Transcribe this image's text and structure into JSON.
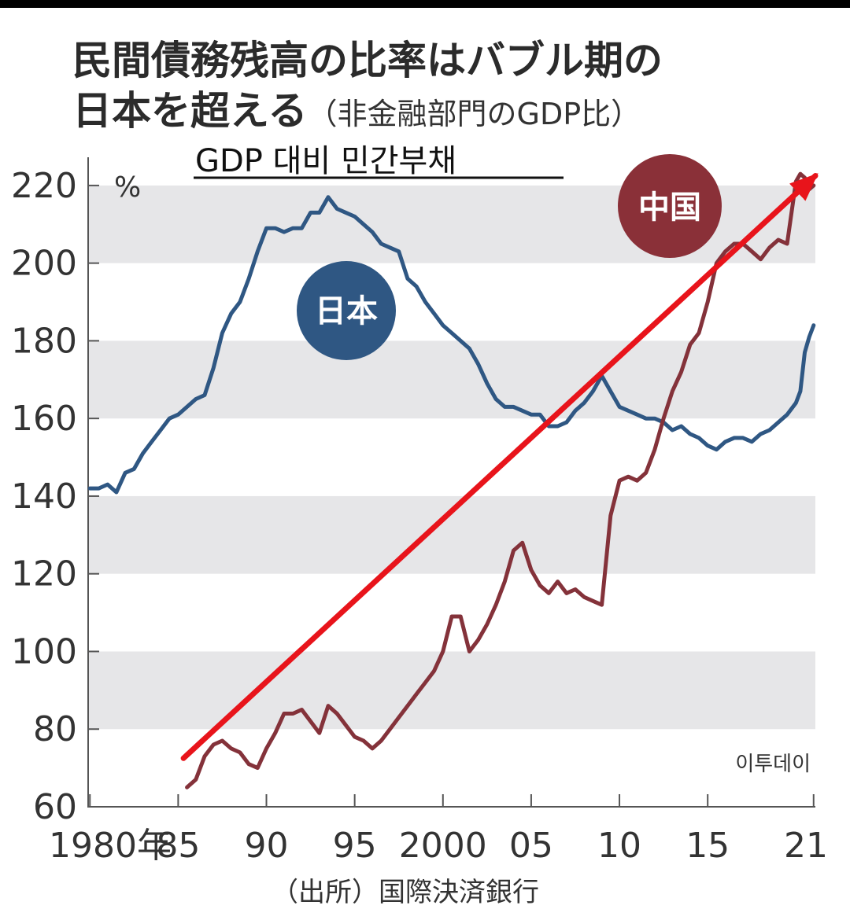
{
  "header": {
    "title_line1": "民間債務残高の比率はバブル期の",
    "title_line2": "日本を超える",
    "title_note": "（非金融部門のGDP比）",
    "korean_title": "GDP 대비 민간부채"
  },
  "source": "（出所）国際決済銀行",
  "watermark": "이투데이",
  "colors": {
    "japan": "#2f5783",
    "china": "#84323a",
    "arrow": "#e8141b",
    "band": "#e6e6e8",
    "japan_badge": "#2f5783",
    "china_badge": "#8a3038"
  },
  "chart_data": {
    "type": "line",
    "title": "GDP 대비 민간부채",
    "ylabel": "%",
    "xlabel": "",
    "ylim": [
      60,
      222
    ],
    "xlim": [
      1979.9,
      2021.1
    ],
    "y_ticks": [
      220,
      200,
      180,
      160,
      140,
      120,
      100,
      80,
      60
    ],
    "x_ticks": [
      {
        "value": 1980,
        "label": "1980年"
      },
      {
        "value": 1985,
        "label": "85"
      },
      {
        "value": 1990,
        "label": "90"
      },
      {
        "value": 1995,
        "label": "95"
      },
      {
        "value": 2000,
        "label": "2000"
      },
      {
        "value": 2005,
        "label": "05"
      },
      {
        "value": 2010,
        "label": "10"
      },
      {
        "value": 2015,
        "label": "15"
      },
      {
        "value": 2021,
        "label": "21"
      }
    ],
    "series": [
      {
        "name": "日本",
        "x": [
          1980.0,
          1980.5,
          1981.0,
          1981.5,
          1982.0,
          1982.5,
          1983.0,
          1983.5,
          1984.0,
          1984.5,
          1985.0,
          1985.5,
          1986.0,
          1986.5,
          1987.0,
          1987.5,
          1988.0,
          1988.5,
          1989.0,
          1989.5,
          1990.0,
          1990.5,
          1991.0,
          1991.5,
          1992.0,
          1992.5,
          1993.0,
          1993.5,
          1994.0,
          1994.5,
          1995.0,
          1995.5,
          1996.0,
          1996.5,
          1997.0,
          1997.5,
          1998.0,
          1998.5,
          1999.0,
          1999.5,
          2000.0,
          2000.5,
          2001.0,
          2001.5,
          2002.0,
          2002.5,
          2003.0,
          2003.5,
          2004.0,
          2004.5,
          2005.0,
          2005.5,
          2006.0,
          2006.5,
          2007.0,
          2007.5,
          2008.0,
          2008.5,
          2009.0,
          2009.5,
          2010.0,
          2010.5,
          2011.0,
          2011.5,
          2012.0,
          2012.5,
          2013.0,
          2013.5,
          2014.0,
          2014.5,
          2015.0,
          2015.5,
          2016.0,
          2016.5,
          2017.0,
          2017.5,
          2018.0,
          2018.5,
          2019.0,
          2019.5,
          2020.0,
          2020.25,
          2020.5,
          2020.75,
          2021.0
        ],
        "values": [
          142,
          142,
          143,
          141,
          146,
          147,
          151,
          154,
          157,
          160,
          161,
          163,
          165,
          166,
          173,
          182,
          187,
          190,
          196,
          203,
          209,
          209,
          208,
          209,
          209,
          213,
          213,
          217,
          214,
          213,
          212,
          210,
          208,
          205,
          204,
          203,
          196,
          194,
          190,
          187,
          184,
          182,
          180,
          178,
          174,
          169,
          165,
          163,
          163,
          162,
          161,
          161,
          158,
          158,
          159,
          162,
          164,
          167,
          171,
          167,
          163,
          162,
          161,
          160,
          160,
          159,
          157,
          158,
          156,
          155,
          153,
          152,
          154,
          155,
          155,
          154,
          156,
          157,
          159,
          161,
          164,
          167,
          177,
          181,
          184
        ]
      },
      {
        "name": "中国",
        "x": [
          1985.5,
          1986.0,
          1986.5,
          1987.0,
          1987.5,
          1988.0,
          1988.5,
          1989.0,
          1989.5,
          1990.0,
          1990.5,
          1991.0,
          1991.5,
          1992.0,
          1992.5,
          1993.0,
          1993.5,
          1994.0,
          1994.5,
          1995.0,
          1995.5,
          1996.0,
          1996.5,
          1997.0,
          1997.5,
          1998.0,
          1998.5,
          1999.0,
          1999.5,
          2000.0,
          2000.5,
          2001.0,
          2001.5,
          2002.0,
          2002.5,
          2003.0,
          2003.5,
          2004.0,
          2004.5,
          2005.0,
          2005.5,
          2006.0,
          2006.5,
          2007.0,
          2007.5,
          2008.0,
          2008.5,
          2009.0,
          2009.5,
          2010.0,
          2010.5,
          2011.0,
          2011.5,
          2012.0,
          2012.5,
          2013.0,
          2013.5,
          2014.0,
          2014.5,
          2015.0,
          2015.5,
          2016.0,
          2016.5,
          2017.0,
          2017.5,
          2018.0,
          2018.5,
          2019.0,
          2019.5,
          2020.0,
          2020.25,
          2020.5,
          2020.75,
          2021.0
        ],
        "values": [
          65,
          67,
          73,
          76,
          77,
          75,
          74,
          71,
          70,
          75,
          79,
          84,
          84,
          85,
          82,
          79,
          86,
          84,
          81,
          78,
          77,
          75,
          77,
          80,
          83,
          86,
          89,
          92,
          95,
          100,
          109,
          109,
          100,
          103,
          107,
          112,
          118,
          126,
          128,
          121,
          117,
          115,
          118,
          115,
          116,
          114,
          113,
          112,
          135,
          144,
          145,
          144,
          146,
          152,
          160,
          167,
          172,
          179,
          182,
          190,
          200,
          203,
          205,
          205,
          203,
          201,
          204,
          206,
          205,
          221,
          223,
          222,
          219,
          220
        ]
      }
    ],
    "annotations": [
      {
        "text": "日本",
        "series": "日本"
      },
      {
        "text": "中国",
        "series": "中国"
      }
    ],
    "trend_arrow": {
      "from": [
        1985.3,
        72.5
      ],
      "to": [
        2021.1,
        222.5
      ]
    },
    "grid": "alternating horizontal bands every 20%",
    "legend": "none (inline circle badges)"
  }
}
